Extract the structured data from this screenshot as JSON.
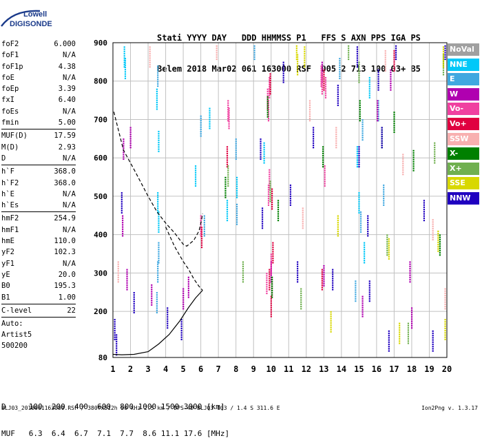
{
  "logo": {
    "line1": "Lowell",
    "line2": "DIGISONDE"
  },
  "header": {
    "line1": "Stati YYYY DAY   DDD HHMMSS P1   FFS S AXN PPS IGA PS",
    "line2": "Belem 2018 Mar02 061 163000 RSF  005 2 713 100 03+ B5"
  },
  "params": {
    "group1": [
      {
        "name": "foF2",
        "value": "6.000"
      },
      {
        "name": "foF1",
        "value": "N/A"
      },
      {
        "name": "foF1p",
        "value": "4.38"
      },
      {
        "name": "foE",
        "value": "N/A"
      },
      {
        "name": "foEp",
        "value": "3.39"
      },
      {
        "name": "fxI",
        "value": "6.40"
      },
      {
        "name": "foEs",
        "value": "N/A"
      },
      {
        "name": "fmin",
        "value": "5.00"
      }
    ],
    "group2": [
      {
        "name": "MUF(D)",
        "value": "17.59"
      },
      {
        "name": "M(D)",
        "value": "2.93"
      },
      {
        "name": "D",
        "value": "N/A"
      }
    ],
    "group3": [
      {
        "name": "h`F",
        "value": "368.0"
      },
      {
        "name": "h`F2",
        "value": "368.0"
      },
      {
        "name": "h`E",
        "value": "N/A"
      },
      {
        "name": "h`Es",
        "value": "N/A"
      }
    ],
    "group4": [
      {
        "name": "hmF2",
        "value": "254.9"
      },
      {
        "name": "hmF1",
        "value": "N/A"
      },
      {
        "name": "hmE",
        "value": "110.0"
      },
      {
        "name": "yF2",
        "value": "102.3"
      },
      {
        "name": "yF1",
        "value": "N/A"
      },
      {
        "name": "yE",
        "value": "20.0"
      },
      {
        "name": "B0",
        "value": "195.3"
      },
      {
        "name": "B1",
        "value": "1.00"
      }
    ],
    "group5": [
      {
        "name": "C-level",
        "value": "22"
      }
    ],
    "auto": {
      "line1": "Auto:",
      "line2": "Artist5",
      "line3": "500200"
    }
  },
  "legend": [
    {
      "label": "NoVal",
      "color": "#a0a0a0"
    },
    {
      "label": "NNE",
      "color": "#00c8f8"
    },
    {
      "label": "E",
      "color": "#40a8e0"
    },
    {
      "label": "W",
      "color": "#b000b0"
    },
    {
      "label": "Vo-",
      "color": "#f040a0"
    },
    {
      "label": "Vo+",
      "color": "#e00040"
    },
    {
      "label": "SSW",
      "color": "#f8b0b0"
    },
    {
      "label": "X-",
      "color": "#008000"
    },
    {
      "label": "X+",
      "color": "#70b050"
    },
    {
      "label": "SSE",
      "color": "#d8d800"
    },
    {
      "label": "NNW",
      "color": "#2000c0"
    }
  ],
  "dtable": {
    "line1": "D     100  200  400  600  800 1000 1500 3000 [km]",
    "line2": "MUF   6.3  6.4  6.7  7.1  7.7  8.6 11.1 17.6 [MHz]"
  },
  "footer": {
    "text": "BLJ03_2018061163000.RSF / 380fx512h 50 kHz 2.5 km / DPS-4D BLJ03 103 / 1.4 S 311.6 E",
    "version": "Ion2Png v. 1.3.17"
  },
  "chart_data": {
    "type": "scatter",
    "title": "",
    "xlabel": "",
    "ylabel": "",
    "xlim": [
      1,
      20
    ],
    "ylim": [
      80,
      900
    ],
    "x_ticks": [
      1,
      2,
      3,
      4,
      5,
      6,
      7,
      8,
      9,
      10,
      11,
      12,
      13,
      14,
      15,
      16,
      17,
      18,
      19,
      20
    ],
    "y_ticks": [
      80,
      200,
      300,
      400,
      500,
      600,
      700,
      800,
      900
    ],
    "grid": true,
    "legend_position": "right",
    "series": [
      {
        "name": "NNE",
        "color": "#00c8f8",
        "points": [
          [
            1.65,
            860
          ],
          [
            1.7,
            830
          ],
          [
            3.55,
            480
          ],
          [
            3.6,
            430
          ],
          [
            5.7,
            550
          ],
          [
            6.5,
            700
          ],
          [
            7.5,
            460
          ],
          [
            8.05,
            520
          ],
          [
            9.6,
            610
          ],
          [
            14.9,
            600
          ],
          [
            15.0,
            480
          ],
          [
            15.3,
            350
          ],
          [
            15.6,
            780
          ],
          [
            3.5,
            750
          ],
          [
            3.6,
            640
          ]
        ]
      },
      {
        "name": "E",
        "color": "#40a8e0",
        "points": [
          [
            3.55,
            300
          ],
          [
            3.6,
            350
          ],
          [
            3.5,
            220
          ],
          [
            6.0,
            680
          ],
          [
            6.2,
            420
          ],
          [
            8.0,
            620
          ],
          [
            8.05,
            450
          ],
          [
            9.05,
            880
          ],
          [
            13.9,
            830
          ],
          [
            14.8,
            250
          ],
          [
            15.1,
            430
          ],
          [
            15.2,
            670
          ],
          [
            16.1,
            720
          ],
          [
            16.4,
            500
          ],
          [
            3.55,
            810
          ]
        ]
      },
      {
        "name": "W",
        "color": "#b000b0",
        "points": [
          [
            1.55,
            420
          ],
          [
            1.6,
            620
          ],
          [
            1.8,
            280
          ],
          [
            2.0,
            650
          ],
          [
            3.2,
            240
          ],
          [
            5.0,
            230
          ],
          [
            5.3,
            260
          ],
          [
            10.0,
            300
          ],
          [
            12.9,
            820
          ],
          [
            13.0,
            290
          ],
          [
            15.2,
            210
          ],
          [
            16.05,
            720
          ],
          [
            16.8,
            800
          ],
          [
            17.9,
            300
          ],
          [
            18.0,
            180
          ]
        ]
      },
      {
        "name": "Vo-",
        "color": "#f040a0",
        "points": [
          [
            7.55,
            720
          ],
          [
            7.6,
            700
          ],
          [
            9.8,
            750
          ],
          [
            9.85,
            720
          ],
          [
            9.9,
            780
          ],
          [
            9.85,
            500
          ],
          [
            10.0,
            320
          ],
          [
            10.05,
            260
          ],
          [
            12.85,
            810
          ],
          [
            12.9,
            790
          ],
          [
            13.05,
            550
          ],
          [
            13.1,
            780
          ],
          [
            9.9,
            540
          ],
          [
            9.75,
            270
          ],
          [
            6.0,
            420
          ]
        ]
      },
      {
        "name": "Vo+",
        "color": "#e00040",
        "points": [
          [
            9.95,
            790
          ],
          [
            10.0,
            210
          ],
          [
            9.9,
            280
          ],
          [
            7.5,
            600
          ],
          [
            6.05,
            390
          ],
          [
            13.0,
            800
          ],
          [
            10.05,
            490
          ],
          [
            10.1,
            350
          ],
          [
            17.0,
            850
          ],
          [
            12.9,
            280
          ]
        ]
      },
      {
        "name": "SSW",
        "color": "#f8b0b0",
        "points": [
          [
            1.3,
            300
          ],
          [
            3.1,
            860
          ],
          [
            6.9,
            880
          ],
          [
            11.8,
            440
          ],
          [
            12.2,
            720
          ],
          [
            13.7,
            650
          ],
          [
            16.5,
            850
          ],
          [
            17.5,
            580
          ],
          [
            19.2,
            410
          ],
          [
            19.9,
            230
          ]
        ]
      },
      {
        "name": "X-",
        "color": "#008000",
        "points": [
          [
            7.4,
            520
          ],
          [
            9.8,
            730
          ],
          [
            10.05,
            260
          ],
          [
            10.4,
            460
          ],
          [
            12.95,
            600
          ],
          [
            15.05,
            720
          ],
          [
            16.3,
            650
          ],
          [
            17.0,
            690
          ],
          [
            18.1,
            590
          ],
          [
            19.6,
            370
          ]
        ]
      },
      {
        "name": "X+",
        "color": "#70b050",
        "points": [
          [
            7.55,
            550
          ],
          [
            8.4,
            300
          ],
          [
            9.95,
            510
          ],
          [
            11.7,
            230
          ],
          [
            14.4,
            880
          ],
          [
            15.0,
            820
          ],
          [
            16.6,
            370
          ],
          [
            17.8,
            140
          ],
          [
            19.3,
            610
          ],
          [
            19.8,
            840
          ]
        ]
      },
      {
        "name": "SSE",
        "color": "#d8d800",
        "points": [
          [
            11.45,
            880
          ],
          [
            11.5,
            840
          ],
          [
            11.9,
            860
          ],
          [
            13.4,
            170
          ],
          [
            13.8,
            420
          ],
          [
            16.7,
            360
          ],
          [
            17.3,
            140
          ],
          [
            19.5,
            380
          ],
          [
            19.8,
            860
          ],
          [
            19.9,
            150
          ]
        ]
      },
      {
        "name": "NNW",
        "color": "#2000c0",
        "points": [
          [
            1.1,
            150
          ],
          [
            1.2,
            110
          ],
          [
            1.5,
            480
          ],
          [
            2.2,
            220
          ],
          [
            4.1,
            180
          ],
          [
            4.9,
            150
          ],
          [
            9.4,
            620
          ],
          [
            9.5,
            440
          ],
          [
            10.7,
            820
          ],
          [
            11.1,
            500
          ],
          [
            11.5,
            300
          ],
          [
            12.4,
            650
          ],
          [
            13.5,
            280
          ],
          [
            13.8,
            760
          ],
          [
            14.9,
            860
          ],
          [
            15.0,
            600
          ],
          [
            15.5,
            420
          ],
          [
            15.6,
            250
          ],
          [
            16.1,
            800
          ],
          [
            16.3,
            650
          ],
          [
            16.7,
            120
          ],
          [
            17.1,
            880
          ],
          [
            18.7,
            460
          ],
          [
            19.2,
            120
          ],
          [
            19.9,
            880
          ]
        ]
      }
    ],
    "profile_dashed": [
      [
        1.05,
        720
      ],
      [
        1.6,
        620
      ],
      [
        2.2,
        570
      ],
      [
        3.0,
        500
      ],
      [
        3.5,
        460
      ],
      [
        4.0,
        430
      ],
      [
        4.5,
        405
      ],
      [
        5.0,
        375
      ],
      [
        5.2,
        370
      ],
      [
        5.6,
        385
      ],
      [
        5.9,
        410
      ],
      [
        6.05,
        440
      ],
      [
        6.1,
        455
      ]
    ],
    "profile_dashed_lower": [
      [
        4.0,
        420
      ],
      [
        4.5,
        370
      ],
      [
        5.0,
        330
      ],
      [
        5.3,
        310
      ],
      [
        5.6,
        285
      ],
      [
        5.9,
        265
      ],
      [
        6.1,
        255
      ]
    ],
    "profile_solid": [
      [
        1.0,
        88
      ],
      [
        1.5,
        87
      ],
      [
        2.2,
        88
      ],
      [
        3.0,
        95
      ],
      [
        3.6,
        115
      ],
      [
        4.2,
        140
      ],
      [
        4.8,
        175
      ],
      [
        5.3,
        210
      ],
      [
        5.7,
        235
      ],
      [
        6.1,
        255
      ]
    ]
  }
}
